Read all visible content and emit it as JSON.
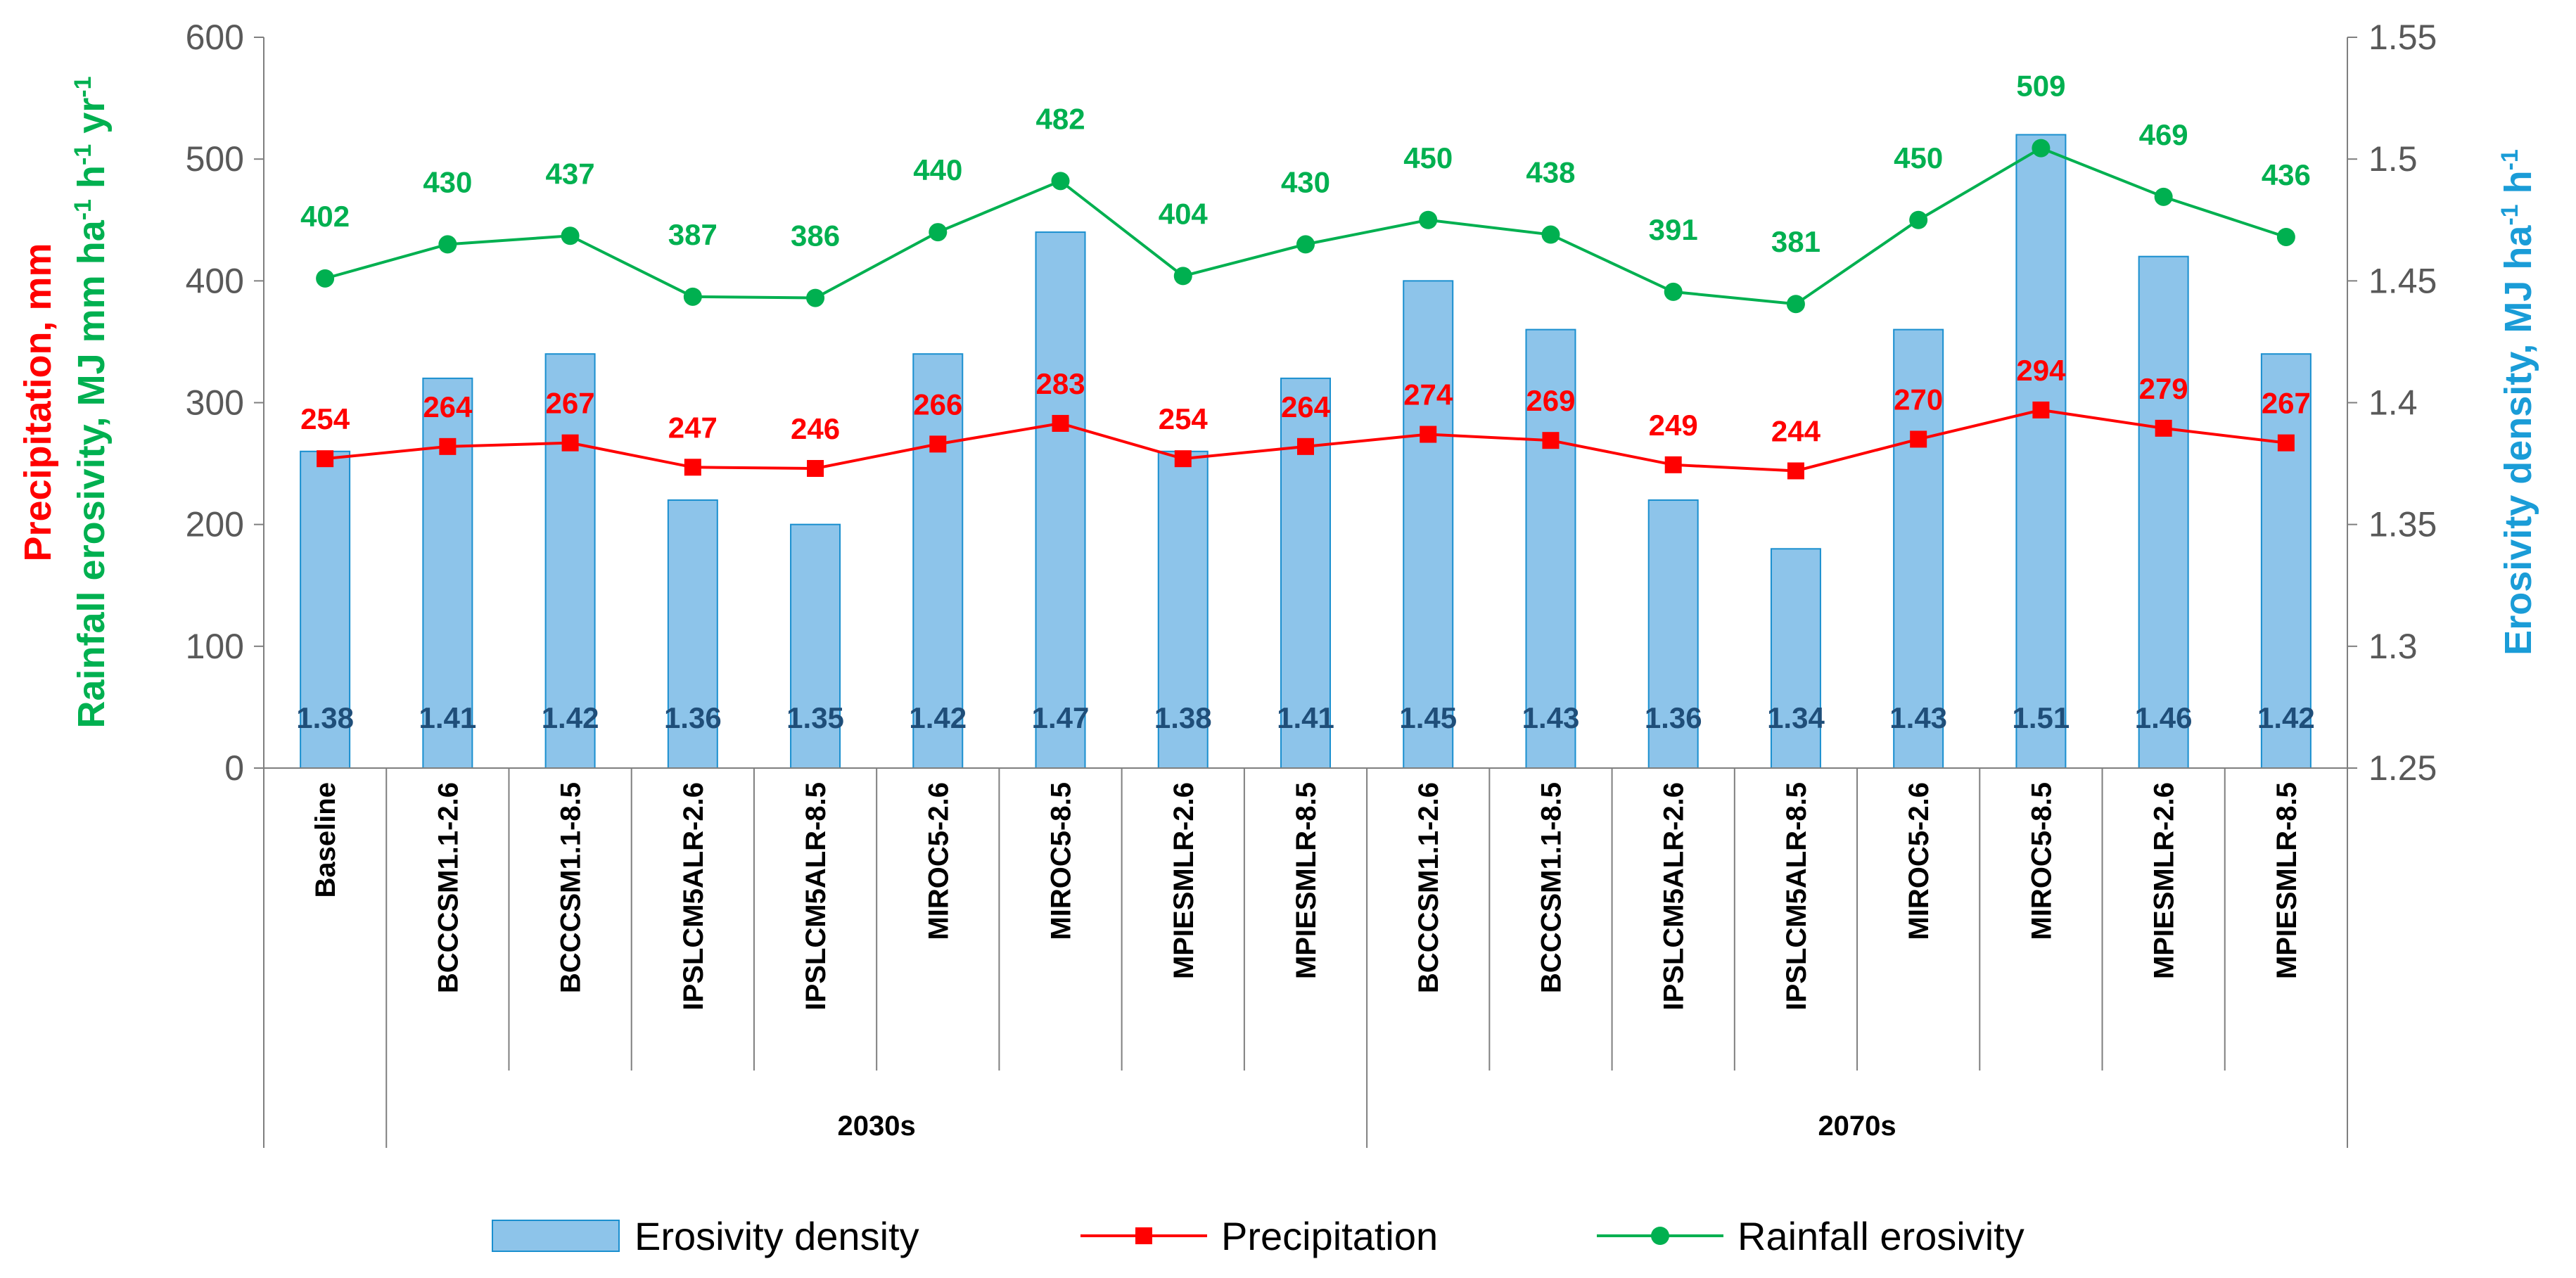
{
  "chart_data": {
    "type": "bar",
    "categories": [
      "Baseline",
      "BCCCSM1.1-2.6",
      "BCCCSM1.1-8.5",
      "IPSLCM5ALR-2.6",
      "IPSLCM5ALR-8.5",
      "MIROC5-2.6",
      "MIROC5-8.5",
      "MPIESMLR-2.6",
      "MPIESMLR-8.5",
      "BCCCSM1.1-2.6",
      "BCCCSM1.1-8.5",
      "IPSLCM5ALR-2.6",
      "IPSLCM5ALR-8.5",
      "MIROC5-2.6",
      "MIROC5-8.5",
      "MPIESMLR-2.6",
      "MPIESMLR-8.5"
    ],
    "groups": [
      {
        "label": "",
        "start": 0,
        "end": 0
      },
      {
        "label": "2030s",
        "start": 1,
        "end": 8
      },
      {
        "label": "2070s",
        "start": 9,
        "end": 16
      }
    ],
    "series": [
      {
        "name": "Erosivity density",
        "type": "bar",
        "axis": "right",
        "color": "#8DC4EA",
        "label_color": "#1F4E79",
        "values": [
          1.38,
          1.41,
          1.42,
          1.36,
          1.35,
          1.42,
          1.47,
          1.38,
          1.41,
          1.45,
          1.43,
          1.36,
          1.34,
          1.43,
          1.51,
          1.46,
          1.42
        ],
        "labels": [
          "1.38",
          "1.41",
          "1.42",
          "1.36",
          "1.35",
          "1.42",
          "1.47",
          "1.38",
          "1.41",
          "1.45",
          "1.43",
          "1.36",
          "1.34",
          "1.43",
          "1.51",
          "1.46",
          "1.42"
        ]
      },
      {
        "name": "Precipitation",
        "type": "line",
        "marker": "square",
        "axis": "left",
        "color": "#FF0000",
        "values": [
          254,
          264,
          267,
          247,
          246,
          266,
          283,
          254,
          264,
          274,
          269,
          249,
          244,
          270,
          294,
          279,
          267
        ],
        "labels": [
          "254",
          "264",
          "267",
          "247",
          "246",
          "266",
          "283",
          "254",
          "264",
          "274",
          "269",
          "249",
          "244",
          "270",
          "294",
          "279",
          "267"
        ]
      },
      {
        "name": "Rainfall erosivity",
        "type": "line",
        "marker": "circle",
        "axis": "left",
        "color": "#00B050",
        "values": [
          402,
          430,
          437,
          387,
          386,
          440,
          482,
          404,
          430,
          450,
          438,
          391,
          381,
          450,
          509,
          469,
          436
        ],
        "labels": [
          "402",
          "430",
          "437",
          "387",
          "386",
          "440",
          "482",
          "404",
          "430",
          "450",
          "438",
          "391",
          "381",
          "450",
          "509",
          "469",
          "436"
        ]
      }
    ],
    "y_left": {
      "ylim": [
        0,
        600
      ],
      "ticks": [
        "0",
        "100",
        "200",
        "300",
        "400",
        "500",
        "600"
      ],
      "title_precip": "Precipitation, mm",
      "title_erosivity": "Rainfall erosivity, MJ mm ha",
      "sup1": "-1",
      "title_h": " h",
      "sup2": "-1",
      "title_yr": " yr",
      "sup3": "-1",
      "precip_color": "#FF0000",
      "erosivity_color": "#00B050"
    },
    "y_right": {
      "ylim": [
        1.25,
        1.55
      ],
      "ticks": [
        "1.25",
        "1.3",
        "1.35",
        "1.4",
        "1.45",
        "1.5",
        "1.55"
      ],
      "title_main": "Erosivity density, MJ ha",
      "sup1": "-1",
      "title_h": " h",
      "sup2": "-1",
      "color": "#1A9CD7"
    },
    "legend": {
      "position": "bottom",
      "items": [
        "Erosivity density",
        "Precipitation",
        "Rainfall erosivity"
      ]
    }
  }
}
